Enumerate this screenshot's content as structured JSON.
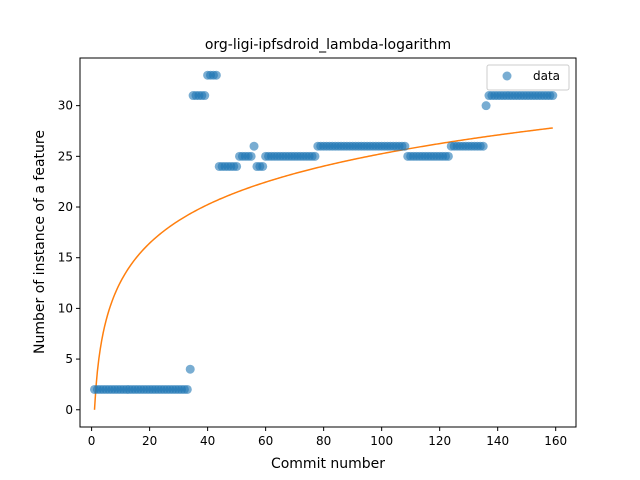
{
  "chart_data": {
    "type": "scatter",
    "title": "org-ligi-ipfsdroid_lambda-logarithm",
    "xlabel": "Commit number",
    "ylabel": "Number of instance of a feature",
    "xlim": [
      -4,
      167
    ],
    "ylim": [
      -1.7,
      34.7
    ],
    "xticks": [
      0,
      20,
      40,
      60,
      80,
      100,
      120,
      140,
      160
    ],
    "yticks": [
      0,
      5,
      10,
      15,
      20,
      25,
      30
    ],
    "legend": {
      "position": "top-right",
      "entries": [
        "data"
      ]
    },
    "grid": false,
    "colors": {
      "points": "#1f77b4",
      "fit": "#ff7f0e"
    },
    "series": [
      {
        "name": "data",
        "kind": "points",
        "segments": [
          {
            "x_from": 1,
            "x_to": 33,
            "y": 2
          },
          {
            "x_from": 34,
            "x_to": 34,
            "y": 4
          },
          {
            "x_from": 35,
            "x_to": 39,
            "y": 31
          },
          {
            "x_from": 40,
            "x_to": 43,
            "y": 33
          },
          {
            "x_from": 44,
            "x_to": 50,
            "y": 24
          },
          {
            "x_from": 51,
            "x_to": 55,
            "y": 25
          },
          {
            "x_from": 56,
            "x_to": 56,
            "y": 26
          },
          {
            "x_from": 57,
            "x_to": 59,
            "y": 24
          },
          {
            "x_from": 60,
            "x_to": 77,
            "y": 25
          },
          {
            "x_from": 78,
            "x_to": 108,
            "y": 26
          },
          {
            "x_from": 109,
            "x_to": 123,
            "y": 25
          },
          {
            "x_from": 124,
            "x_to": 135,
            "y": 26
          },
          {
            "x_from": 136,
            "x_to": 136,
            "y": 30
          },
          {
            "x_from": 137,
            "x_to": 159,
            "y": 31
          }
        ]
      },
      {
        "kind": "fit-line",
        "x_range": [
          1,
          159
        ],
        "samples": [
          {
            "x": 1,
            "y": 0
          },
          {
            "x": 2,
            "y": 3.8
          },
          {
            "x": 5,
            "y": 8.8
          },
          {
            "x": 10,
            "y": 12.6
          },
          {
            "x": 20,
            "y": 16.4
          },
          {
            "x": 40,
            "y": 20.2
          },
          {
            "x": 80,
            "y": 24.0
          },
          {
            "x": 120,
            "y": 26.2
          },
          {
            "x": 159,
            "y": 27.8
          }
        ]
      }
    ]
  }
}
